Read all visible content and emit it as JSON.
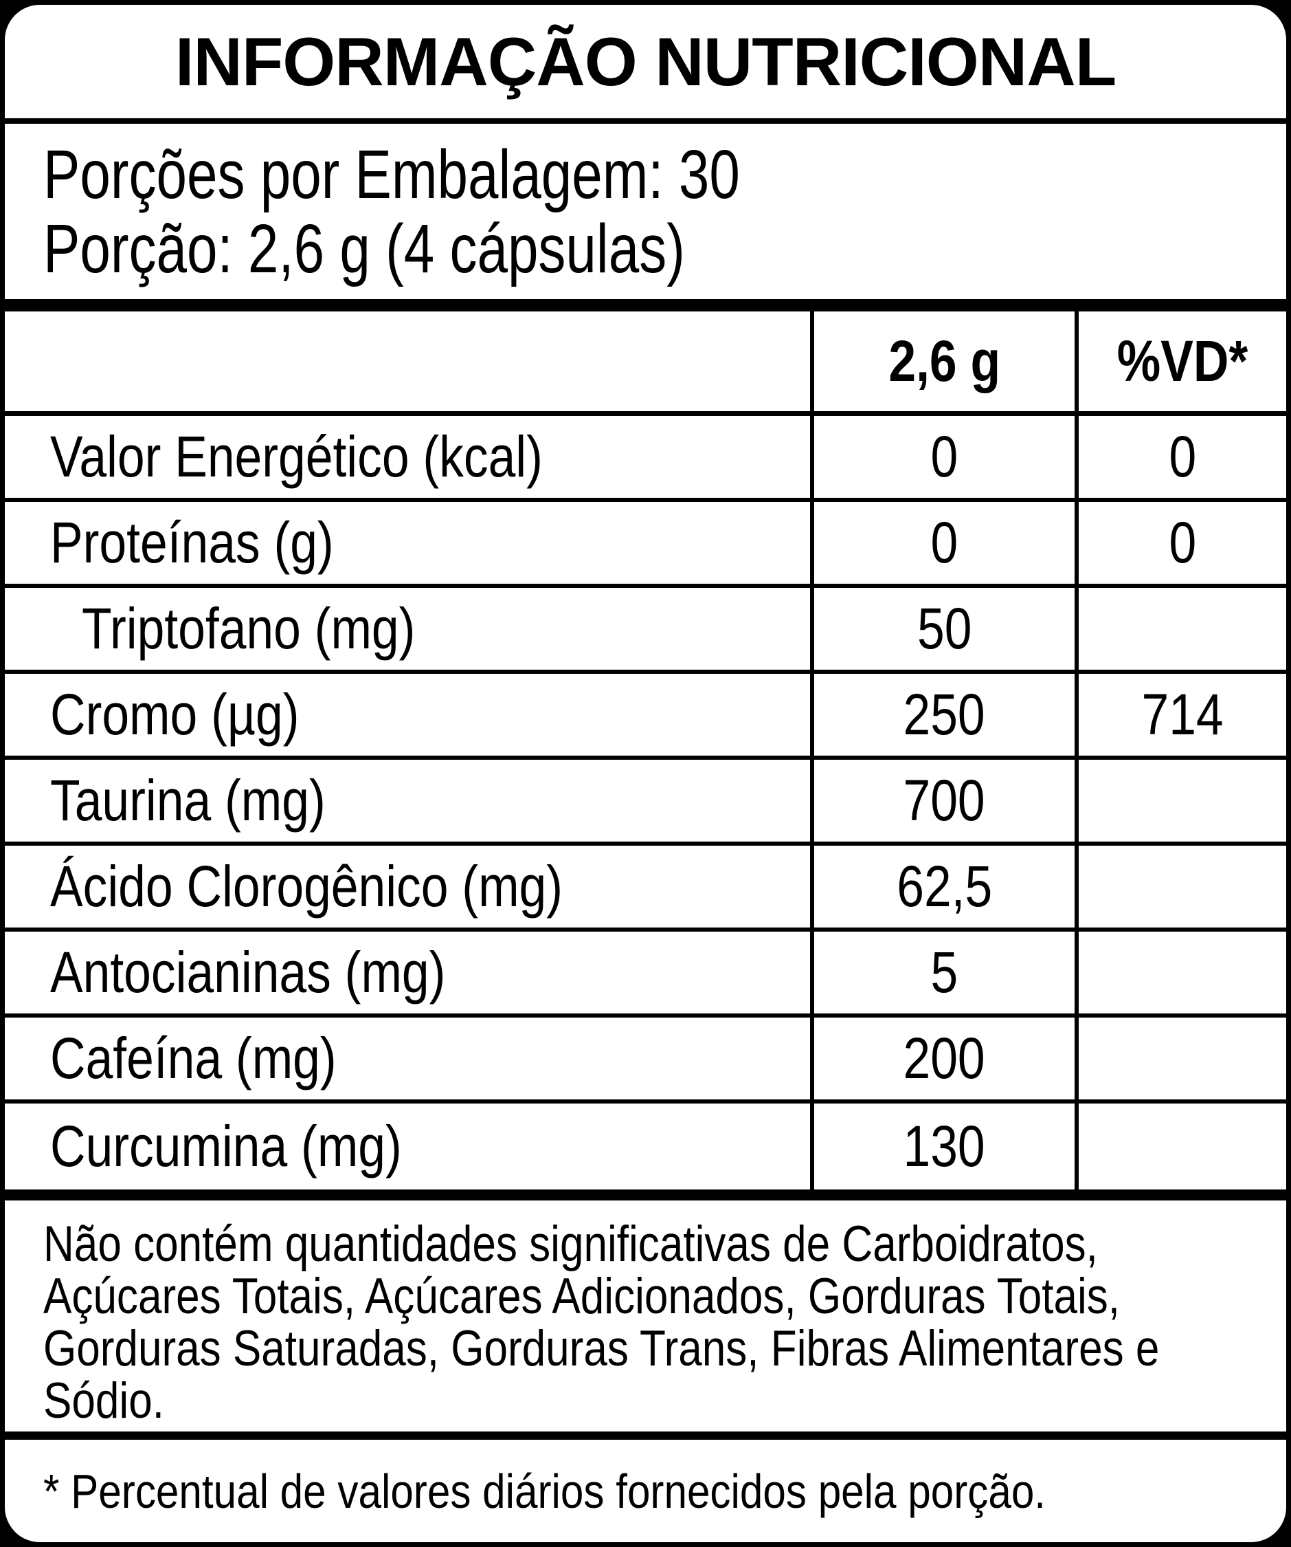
{
  "label": {
    "title": "INFORMAÇÃO NUTRICIONAL",
    "serving_info": {
      "servings_per_package": "Porções por Embalagem: 30",
      "serving_size": "Porção: 2,6 g (4 cápsulas)"
    },
    "table": {
      "columns": [
        "",
        "2,6 g",
        "%VD*"
      ],
      "rows": [
        {
          "label": "Valor Energético (kcal)",
          "qty": "0",
          "vd": "0",
          "indent": false
        },
        {
          "label": "Proteínas (g)",
          "qty": "0",
          "vd": "0",
          "indent": false
        },
        {
          "label": "Triptofano (mg)",
          "qty": "50",
          "vd": "",
          "indent": true
        },
        {
          "label": "Cromo (µg)",
          "qty": "250",
          "vd": "714",
          "indent": false
        },
        {
          "label": "Taurina (mg)",
          "qty": "700",
          "vd": "",
          "indent": false
        },
        {
          "label": "Ácido Clorogênico (mg)",
          "qty": "62,5",
          "vd": "",
          "indent": false
        },
        {
          "label": "Antocianinas (mg)",
          "qty": "5",
          "vd": "",
          "indent": false
        },
        {
          "label": "Cafeína (mg)",
          "qty": "200",
          "vd": "",
          "indent": false
        },
        {
          "label": "Curcumina (mg)",
          "qty": "130",
          "vd": "",
          "indent": false
        }
      ]
    },
    "notes": {
      "no_significant": "Não contém quantidades significativas de Carboidratos, Açúcares Totais, Açúcares Adicionados, Gorduras Totais, Gorduras Saturadas, Gorduras Trans, Fibras Alimentares e Sódio.",
      "daily_value": "* Percentual de valores diários fornecidos pela porção."
    },
    "colors": {
      "text": "#000000",
      "background": "#ffffff",
      "border": "#000000"
    }
  }
}
